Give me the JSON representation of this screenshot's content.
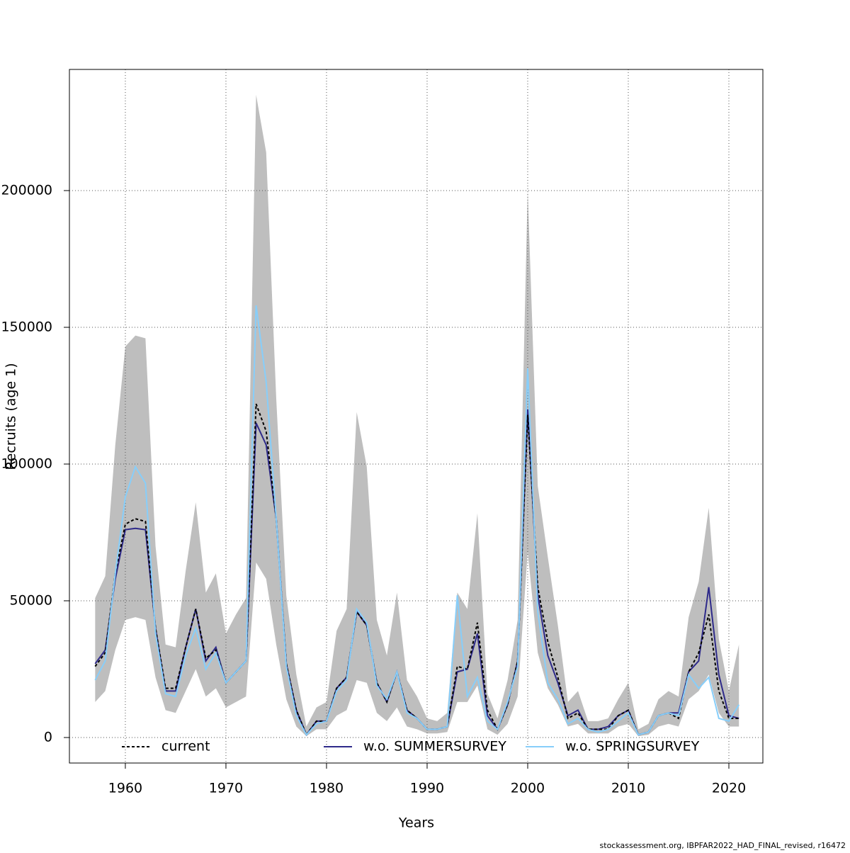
{
  "chart_data": {
    "type": "line",
    "xlabel": "Years",
    "ylabel": "Recruits (age 1)",
    "footer": "stockassessment.org, IBPFAR2022_HAD_FINAL_revised, r16472",
    "x": [
      1957,
      1958,
      1959,
      1960,
      1961,
      1962,
      1963,
      1964,
      1965,
      1966,
      1967,
      1968,
      1969,
      1970,
      1971,
      1972,
      1973,
      1974,
      1975,
      1976,
      1977,
      1978,
      1979,
      1980,
      1981,
      1982,
      1983,
      1984,
      1985,
      1986,
      1987,
      1988,
      1989,
      1990,
      1991,
      1992,
      1993,
      1994,
      1995,
      1996,
      1997,
      1998,
      1999,
      2000,
      2001,
      2002,
      2003,
      2004,
      2005,
      2006,
      2007,
      2008,
      2009,
      2010,
      2011,
      2012,
      2013,
      2014,
      2015,
      2016,
      2017,
      2018,
      2019,
      2020,
      2021
    ],
    "band": {
      "color": "#bebebe",
      "upper": [
        51000,
        59000,
        107000,
        143000,
        147000,
        146000,
        70000,
        34000,
        33000,
        61000,
        86000,
        53000,
        60000,
        38000,
        45000,
        51000,
        235000,
        214000,
        124000,
        52000,
        23000,
        4000,
        11000,
        13000,
        39000,
        47000,
        119000,
        99000,
        43000,
        30000,
        53000,
        21000,
        15000,
        7000,
        6000,
        9000,
        53000,
        47000,
        82000,
        16000,
        7000,
        21000,
        43000,
        200000,
        92000,
        66000,
        41000,
        13000,
        17000,
        6000,
        6000,
        7000,
        14000,
        20000,
        3000,
        5000,
        14000,
        17000,
        15000,
        44000,
        57000,
        84000,
        36000,
        17000,
        34000
      ],
      "lower": [
        13000,
        17000,
        32000,
        43000,
        44000,
        43000,
        22000,
        10000,
        9000,
        17000,
        25000,
        15000,
        18000,
        11000,
        13000,
        15000,
        64000,
        58000,
        34000,
        14000,
        4000,
        500,
        3000,
        3000,
        8000,
        10000,
        21000,
        20000,
        9000,
        6000,
        11000,
        4000,
        3000,
        1500,
        1500,
        2000,
        13000,
        13000,
        19000,
        3000,
        1000,
        5000,
        15000,
        68000,
        31000,
        18000,
        12000,
        4000,
        5000,
        1500,
        1500,
        1500,
        4000,
        5000,
        500,
        1000,
        4000,
        5000,
        4000,
        14000,
        17000,
        23000,
        9000,
        4000,
        4000
      ]
    },
    "series": [
      {
        "name": "current",
        "color": "#000000",
        "dash": "4,3",
        "values": [
          26000,
          31000,
          60000,
          78000,
          80000,
          79000,
          40000,
          18000,
          18000,
          33000,
          47000,
          29000,
          32000,
          20000,
          24000,
          28000,
          122000,
          112000,
          80000,
          27000,
          10000,
          1000,
          6000,
          6000,
          18000,
          22000,
          46000,
          41000,
          20000,
          13000,
          24000,
          10000,
          7000,
          3000,
          3000,
          4000,
          26000,
          25000,
          42000,
          10000,
          3000,
          12000,
          28000,
          118000,
          55000,
          35000,
          22000,
          7000,
          9000,
          3000,
          3000,
          3000,
          8000,
          10000,
          1000,
          2000,
          8000,
          9000,
          7000,
          24000,
          31000,
          45000,
          17000,
          7000,
          7000
        ]
      },
      {
        "name": "w.o. SUMMERSURVEY",
        "color": "#2e2a8a",
        "values": [
          27000,
          32000,
          58000,
          76000,
          76500,
          76000,
          40000,
          17000,
          17000,
          33000,
          47000,
          28000,
          33000,
          20000,
          24000,
          28000,
          115000,
          107000,
          80000,
          27000,
          10000,
          1000,
          6000,
          6000,
          18000,
          22000,
          46000,
          41000,
          20000,
          13000,
          24000,
          10000,
          7000,
          3000,
          3000,
          4000,
          24000,
          25000,
          38000,
          8000,
          3000,
          12000,
          28000,
          120000,
          52000,
          30000,
          20000,
          8000,
          10000,
          3000,
          3000,
          4000,
          8000,
          10000,
          1000,
          2000,
          8000,
          9000,
          9000,
          24000,
          28000,
          55000,
          23000,
          8000,
          7000
        ]
      },
      {
        "name": "w.o. SPRINGSURVEY",
        "color": "#87cefa",
        "values": [
          21000,
          28000,
          60000,
          88000,
          99000,
          93000,
          38000,
          16000,
          15000,
          30000,
          40000,
          25000,
          31000,
          20000,
          24000,
          28000,
          158000,
          130000,
          80000,
          26000,
          8000,
          1000,
          5000,
          6000,
          17000,
          21000,
          47000,
          42000,
          19000,
          14000,
          24000,
          9000,
          7000,
          3000,
          3000,
          4000,
          52000,
          15000,
          22000,
          6000,
          3000,
          13000,
          26000,
          135000,
          46000,
          20000,
          14000,
          5000,
          7000,
          3000,
          2000,
          3000,
          6000,
          9000,
          1000,
          2000,
          8000,
          9000,
          8000,
          23000,
          18000,
          22000,
          7000,
          6000,
          12000
        ]
      }
    ],
    "xlim": [
      1954.44,
      2023.38
    ],
    "ylim": [
      -9326,
      244300
    ],
    "xticks": [
      1960,
      1970,
      1980,
      1990,
      2000,
      2010,
      2020
    ],
    "yticks": [
      0,
      50000,
      100000,
      150000,
      200000
    ],
    "grid": true,
    "legend": "bottom"
  }
}
